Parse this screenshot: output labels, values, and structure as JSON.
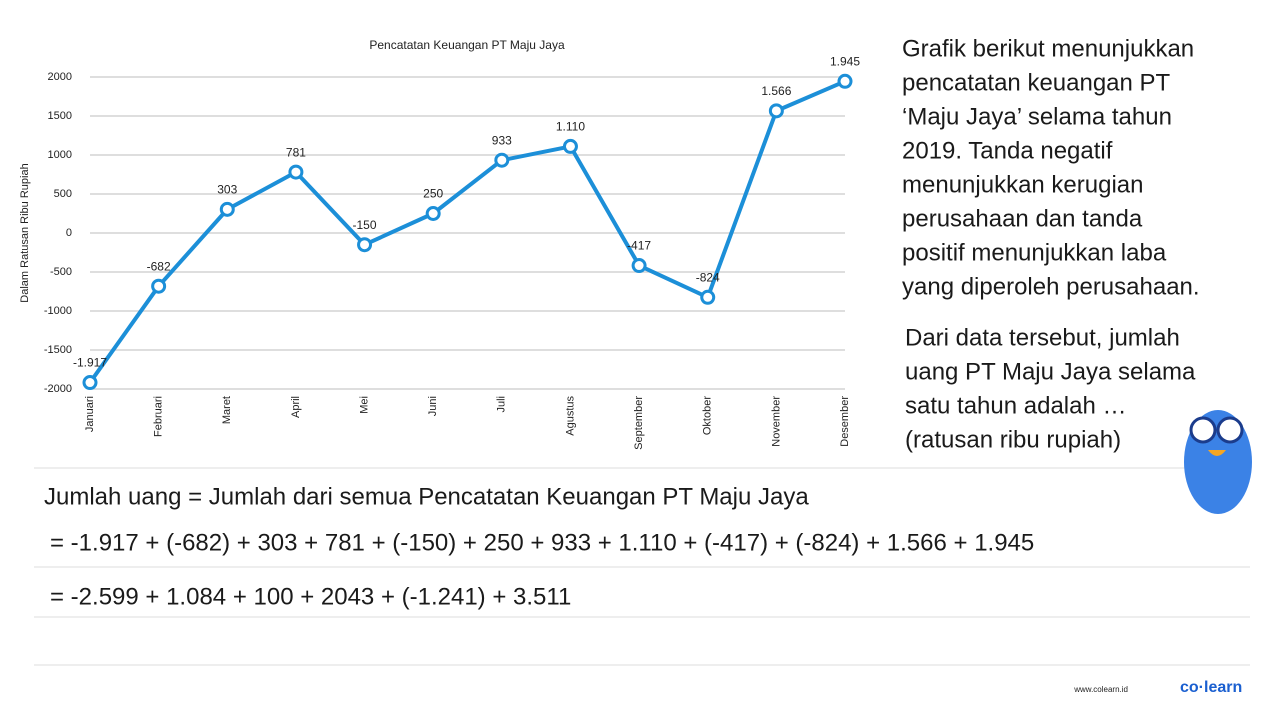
{
  "chart_data": {
    "type": "line",
    "title": "Pencatatan Keuangan PT Maju Jaya",
    "y_label": "Dalam Ratusan Ribu Rupiah",
    "categories": [
      "Januari",
      "Februari",
      "Maret",
      "April",
      "Mei",
      "Juni",
      "Juli",
      "Agustus",
      "September",
      "Oktober",
      "November",
      "Desember"
    ],
    "values": [
      -1917,
      -682,
      303,
      781,
      -150,
      250,
      933,
      1110,
      -417,
      -824,
      1566,
      1945
    ],
    "value_labels": [
      "-1.917",
      "-682",
      "303",
      "781",
      "-150",
      "250",
      "933",
      "1.110",
      "-417",
      "-824",
      "1.566",
      "1.945"
    ],
    "color": "#1c8fd8",
    "ylim": [
      -2000,
      2000
    ],
    "yticks": [
      -2000,
      -1500,
      -1000,
      -500,
      0,
      500,
      1000,
      1500,
      2000
    ],
    "grid": true
  },
  "description": [
    "Grafik berikut menunjukkan",
    "pencatatan keuangan PT",
    "‘Maju Jaya’ selama tahun",
    "2019. Tanda negatif",
    "menunjukkan kerugian",
    "perusahaan dan tanda",
    "positif menunjukkan laba",
    "yang diperoleh perusahaan."
  ],
  "question": [
    "Dari data tersebut, jumlah",
    "uang PT Maju Jaya selama",
    "satu tahun adalah …",
    "(ratusan ribu rupiah)"
  ],
  "solution": [
    "Jumlah uang = Jumlah dari semua Pencatatan Keuangan PT Maju Jaya",
    "= -1.917 + (-682) + 303 + 781 + (-150) + 250 + 933 + 1.110 + (-417) + (-824) + 1.566 + 1.945",
    "= -2.599 + 1.084 + 100 + 2043 + (-1.241) + 3.511"
  ],
  "footer": {
    "url": "www.colearn.id",
    "brand": "co·learn"
  }
}
